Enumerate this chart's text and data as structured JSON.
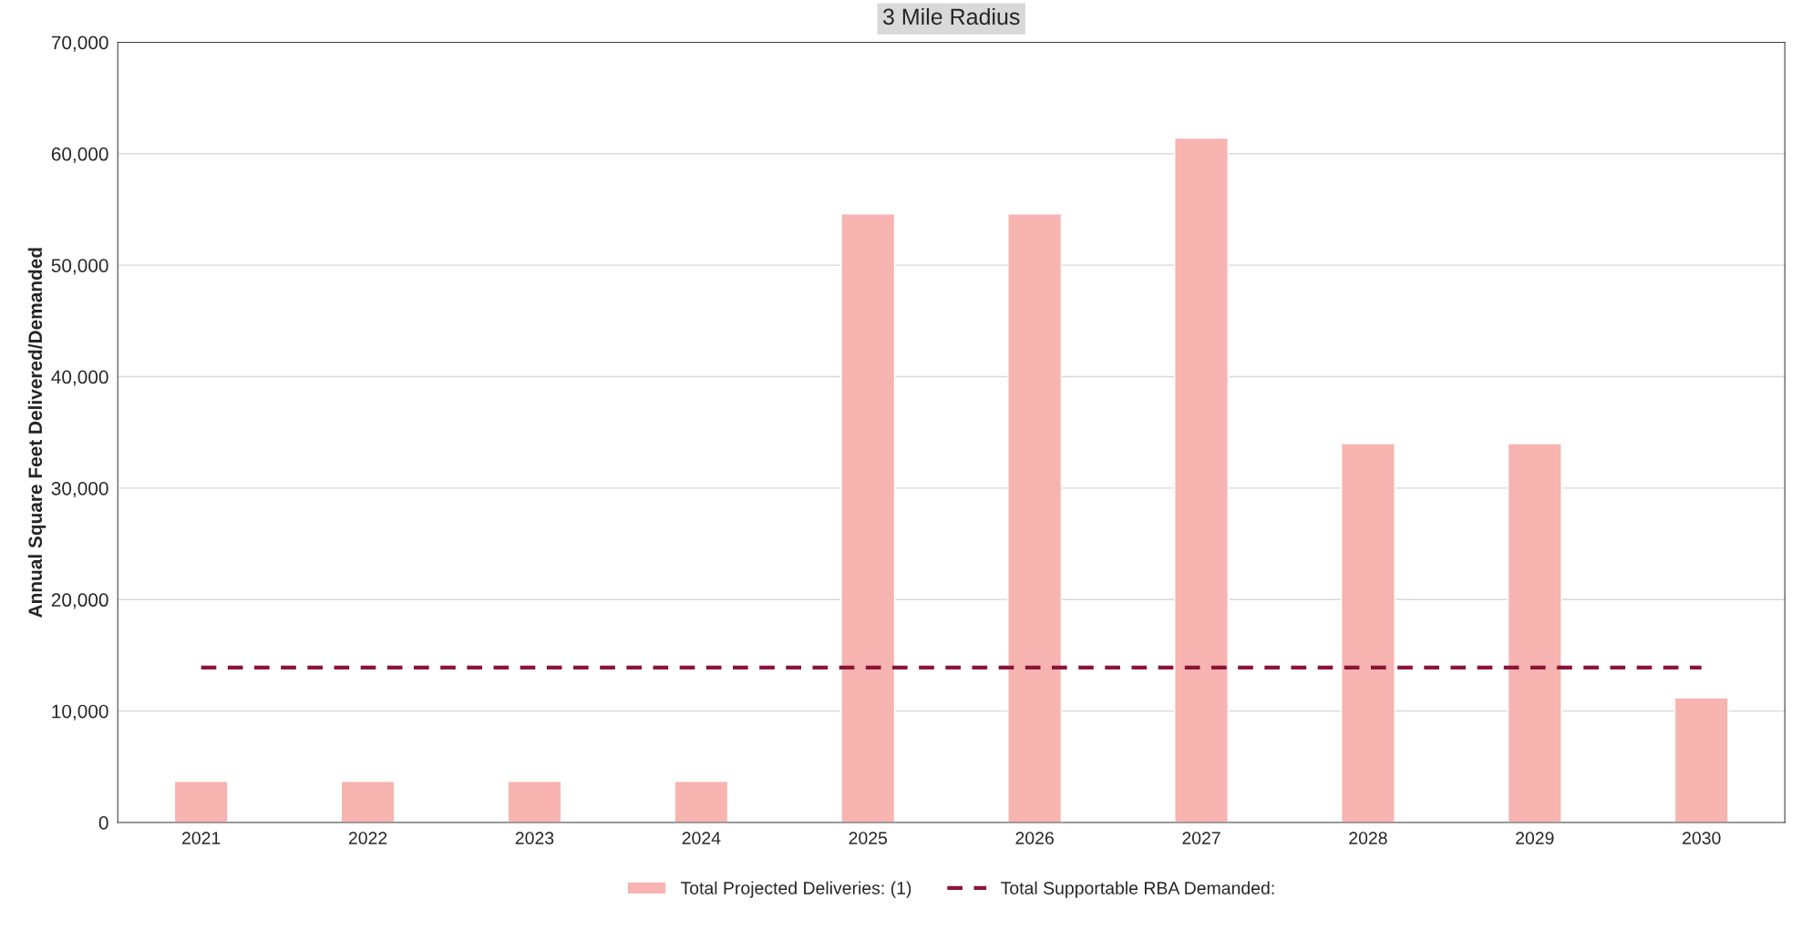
{
  "chart_data": {
    "type": "bar",
    "title": "3 Mile Radius",
    "ylabel": "Annual Square Feet Delivered/Demanded",
    "categories": [
      "2021",
      "2022",
      "2023",
      "2024",
      "2025",
      "2026",
      "2027",
      "2028",
      "2029",
      "2030"
    ],
    "series": [
      {
        "name": "Total Projected Deliveries: (1)",
        "color": "#f8b4b0",
        "values": [
          3700,
          3700,
          3700,
          3700,
          54600,
          54600,
          61400,
          34000,
          34000,
          11200
        ]
      },
      {
        "name": "Total Supportable RBA Demanded:",
        "type": "line",
        "color": "#8b1538",
        "line_style": "dashed",
        "values": [
          13900,
          13900,
          13900,
          13900,
          13900,
          13900,
          13900,
          13900,
          13900,
          13900
        ]
      }
    ],
    "ylim": [
      0,
      70000
    ],
    "yticks": [
      {
        "value": 0,
        "label": "0"
      },
      {
        "value": 10000,
        "label": "10,000"
      },
      {
        "value": 20000,
        "label": "20,000"
      },
      {
        "value": 30000,
        "label": "30,000"
      },
      {
        "value": 40000,
        "label": "40,000"
      },
      {
        "value": 50000,
        "label": "50,000"
      },
      {
        "value": 60000,
        "label": "60,000"
      },
      {
        "value": 70000,
        "label": "70,000"
      }
    ],
    "grid": "y",
    "legend": "bottom"
  }
}
